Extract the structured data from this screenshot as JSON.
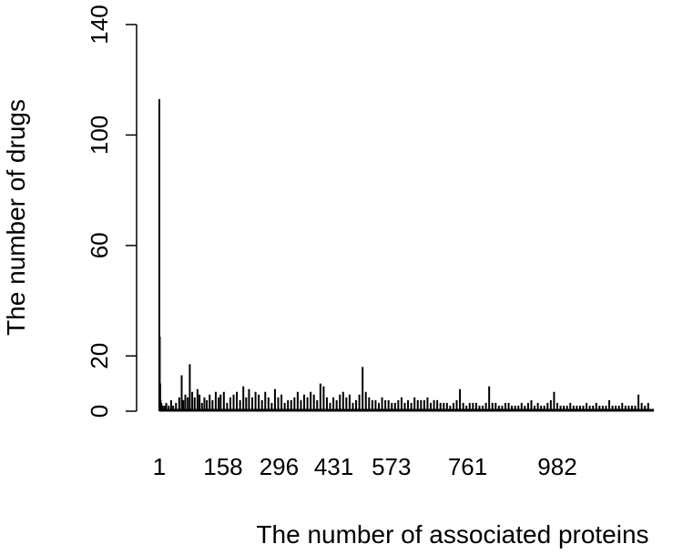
{
  "chart_data": {
    "type": "bar",
    "title": "",
    "xlabel": "The number of associated proteins",
    "ylabel": "The number of drugs",
    "ylim": [
      0,
      140
    ],
    "xlim": [
      1,
      1220
    ],
    "y_ticks": [
      0,
      20,
      60,
      100,
      140
    ],
    "x_ticks": [
      1,
      158,
      296,
      431,
      573,
      761,
      982
    ],
    "grid": false,
    "legend": "none",
    "bar_color": "#000000",
    "note": "Needle (histogram-style) plot; values estimated from the y-axis scale.",
    "series": [
      {
        "x": [
          1,
          2,
          3,
          4,
          6,
          9,
          14,
          18,
          24,
          30,
          35,
          42,
          50,
          56,
          60,
          65,
          71,
          76,
          82,
          88,
          95,
          100,
          106,
          112,
          118,
          125,
          132,
          140,
          147,
          152,
          160,
          168,
          176,
          184,
          192,
          200,
          208,
          215,
          222,
          230,
          238,
          246,
          254,
          262,
          270,
          278,
          286,
          294,
          302,
          310,
          318,
          326,
          334,
          342,
          350,
          358,
          366,
          374,
          382,
          390,
          398,
          406,
          414,
          422,
          430,
          438,
          446,
          454,
          462,
          470,
          478,
          486,
          494,
          502,
          510,
          518,
          526,
          534,
          542,
          550,
          558,
          566,
          574,
          582,
          590,
          598,
          606,
          614,
          622,
          630,
          638,
          646,
          654,
          662,
          670,
          678,
          686,
          694,
          702,
          710,
          718,
          726,
          734,
          742,
          750,
          758,
          766,
          774,
          782,
          790,
          798,
          806,
          814,
          822,
          830,
          838,
          846,
          854,
          862,
          870,
          878,
          886,
          894,
          902,
          910,
          918,
          926,
          934,
          942,
          950,
          958,
          966,
          974,
          982,
          990,
          998,
          1006,
          1014,
          1022,
          1030,
          1038,
          1046,
          1054,
          1062,
          1070,
          1078,
          1086,
          1094,
          1102,
          1110,
          1118,
          1126,
          1134,
          1142,
          1150,
          1158,
          1166,
          1174,
          1182,
          1190,
          1198,
          1206
        ],
        "y": [
          113,
          27,
          10,
          4,
          3,
          2,
          2,
          3,
          2,
          4,
          2,
          3,
          5,
          13,
          4,
          6,
          5,
          17,
          7,
          5,
          8,
          6,
          3,
          5,
          4,
          6,
          4,
          7,
          5,
          6,
          7,
          3,
          5,
          6,
          7,
          4,
          9,
          5,
          8,
          5,
          7,
          6,
          4,
          7,
          5,
          3,
          8,
          5,
          6,
          3,
          4,
          4,
          5,
          7,
          4,
          6,
          5,
          7,
          6,
          4,
          10,
          9,
          5,
          3,
          5,
          4,
          6,
          7,
          5,
          6,
          3,
          4,
          6,
          16,
          7,
          5,
          4,
          4,
          3,
          5,
          4,
          4,
          3,
          3,
          4,
          5,
          3,
          4,
          3,
          5,
          4,
          4,
          4,
          5,
          3,
          4,
          4,
          3,
          3,
          3,
          2,
          3,
          4,
          8,
          3,
          2,
          3,
          3,
          3,
          2,
          2,
          3,
          9,
          3,
          3,
          2,
          2,
          3,
          3,
          2,
          2,
          2,
          3,
          2,
          3,
          4,
          2,
          3,
          2,
          2,
          3,
          4,
          7,
          3,
          2,
          2,
          2,
          3,
          2,
          2,
          2,
          2,
          3,
          2,
          2,
          3,
          2,
          2,
          2,
          4,
          2,
          2,
          2,
          3,
          2,
          2,
          2,
          2,
          6,
          3,
          2,
          3
        ]
      }
    ]
  }
}
